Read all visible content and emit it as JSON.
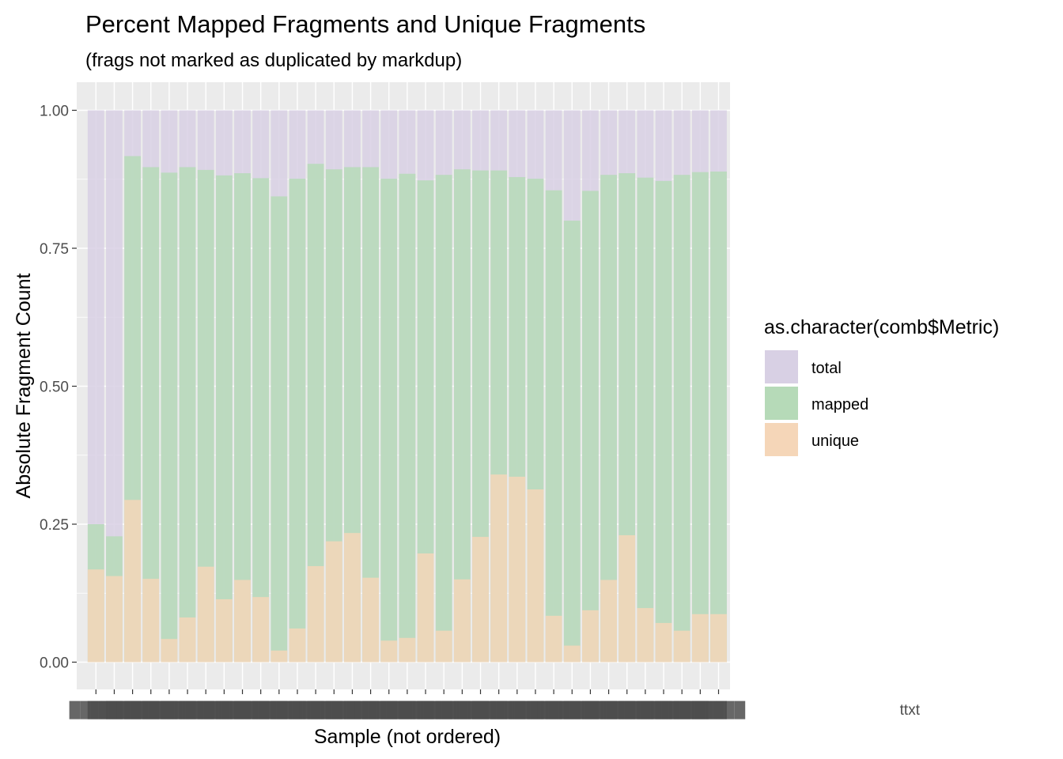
{
  "chart_data": {
    "type": "bar",
    "title": "Percent Mapped Fragments and Unique Fragments",
    "subtitle": "(frags not marked as duplicated by markdup)",
    "xlabel": "Sample (not ordered)",
    "ylabel": "Absolute Fragment Count",
    "ylim": [
      0,
      1.05
    ],
    "y_ticks": [
      0,
      0.25,
      0.5,
      0.75,
      1.0
    ],
    "y_tick_labels": [
      "0.00",
      "0.25",
      "0.50",
      "0.75",
      "1.00"
    ],
    "grid": true,
    "legend_position": "right",
    "legend_title": "as.character(comb$Metric)",
    "colors": {
      "total": "#D8D0E4",
      "mapped": "#B6DAB8",
      "unique": "#F5D6B8",
      "panel_bg": "#EBEBEB"
    },
    "x_tick_labels_note": "overlapping, illegible sample-name labels; only trailing characters visible",
    "x_tick_label_visible": "ttxt",
    "series": [
      {
        "name": "total",
        "values": [
          1,
          1,
          1,
          1,
          1,
          1,
          1,
          1,
          1,
          1,
          1,
          1,
          1,
          1,
          1,
          1,
          1,
          1,
          1,
          1,
          1,
          1,
          1,
          1,
          1,
          1,
          1,
          1,
          1,
          1,
          1,
          1,
          1,
          1,
          1
        ]
      },
      {
        "name": "mapped",
        "values": [
          0.25,
          0.228,
          0.917,
          0.897,
          0.887,
          0.897,
          0.892,
          0.882,
          0.886,
          0.877,
          0.844,
          0.876,
          0.903,
          0.893,
          0.897,
          0.897,
          0.876,
          0.885,
          0.873,
          0.883,
          0.893,
          0.891,
          0.891,
          0.879,
          0.876,
          0.855,
          0.8,
          0.854,
          0.883,
          0.886,
          0.878,
          0.872,
          0.883,
          0.888,
          0.889
        ]
      },
      {
        "name": "unique",
        "values": [
          0.168,
          0.156,
          0.294,
          0.151,
          0.042,
          0.081,
          0.173,
          0.114,
          0.149,
          0.118,
          0.021,
          0.061,
          0.174,
          0.219,
          0.234,
          0.153,
          0.039,
          0.044,
          0.197,
          0.057,
          0.15,
          0.227,
          0.34,
          0.336,
          0.313,
          0.084,
          0.03,
          0.094,
          0.149,
          0.23,
          0.098,
          0.071,
          0.057,
          0.087,
          0.087
        ]
      }
    ]
  }
}
